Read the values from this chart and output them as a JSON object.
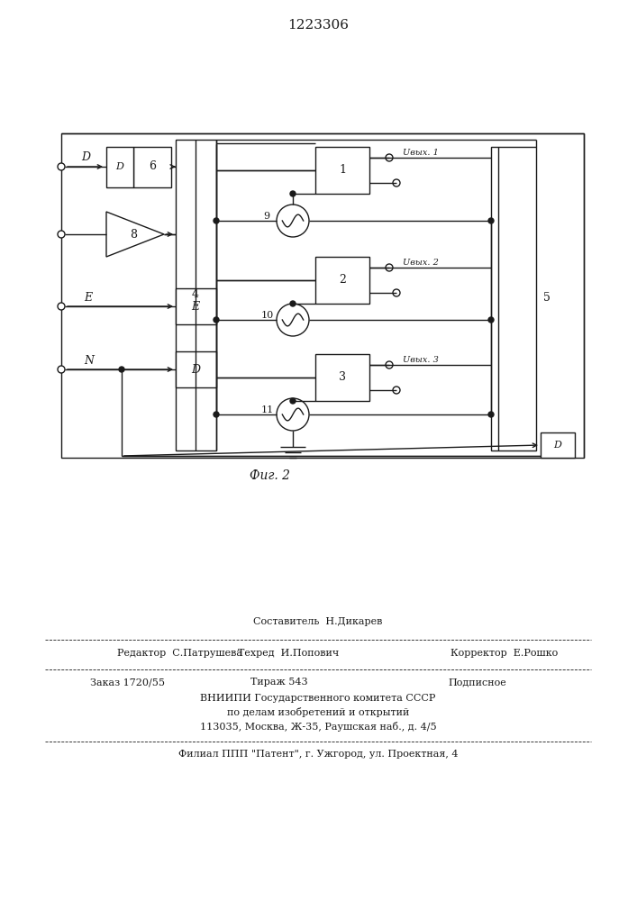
{
  "title": "1223306",
  "fig_label": "Фиг. 2",
  "bg_color": "#ffffff",
  "line_color": "#1a1a1a",
  "lw": 1.0,
  "footer": {
    "line1_left": "Редактор  С.Патрушева",
    "line1_center": "Техред  И.Попович",
    "line1_right": "Корректор  Е.Рошко",
    "line1_top": "Составитель  Н.Дикарев",
    "line2_left": "Заказ 1720/55",
    "line2_center": "Тираж 543",
    "line2_right": "Подписное",
    "line3": "ВНИИПИ Государственного комитета СССР",
    "line4": "по делам изобретений и открытий",
    "line5": "113035, Москва, Ж-35, Раушская наб., д. 4/5",
    "line6": "Филиал ППП \"Патент\", г. Ужгород, ул. Проектная, 4"
  }
}
